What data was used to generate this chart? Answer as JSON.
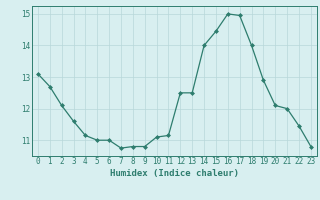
{
  "x": [
    0,
    1,
    2,
    3,
    4,
    5,
    6,
    7,
    8,
    9,
    10,
    11,
    12,
    13,
    14,
    15,
    16,
    17,
    18,
    19,
    20,
    21,
    22,
    23
  ],
  "y": [
    13.1,
    12.7,
    12.1,
    11.6,
    11.15,
    11.0,
    11.0,
    10.75,
    10.8,
    10.8,
    11.1,
    11.15,
    12.5,
    12.5,
    14.0,
    14.45,
    15.0,
    14.95,
    14.0,
    12.9,
    12.1,
    12.0,
    11.45,
    10.8
  ],
  "line_color": "#2e7d6e",
  "marker": "D",
  "marker_size": 2,
  "bg_color": "#d8eff0",
  "grid_color": "#b8d8da",
  "xlabel": "Humidex (Indice chaleur)",
  "ylim": [
    10.5,
    15.25
  ],
  "xlim": [
    -0.5,
    23.5
  ],
  "yticks": [
    11,
    12,
    13,
    14,
    15
  ],
  "xticks": [
    0,
    1,
    2,
    3,
    4,
    5,
    6,
    7,
    8,
    9,
    10,
    11,
    12,
    13,
    14,
    15,
    16,
    17,
    18,
    19,
    20,
    21,
    22,
    23
  ],
  "xlabel_fontsize": 6.5,
  "tick_fontsize": 5.5
}
